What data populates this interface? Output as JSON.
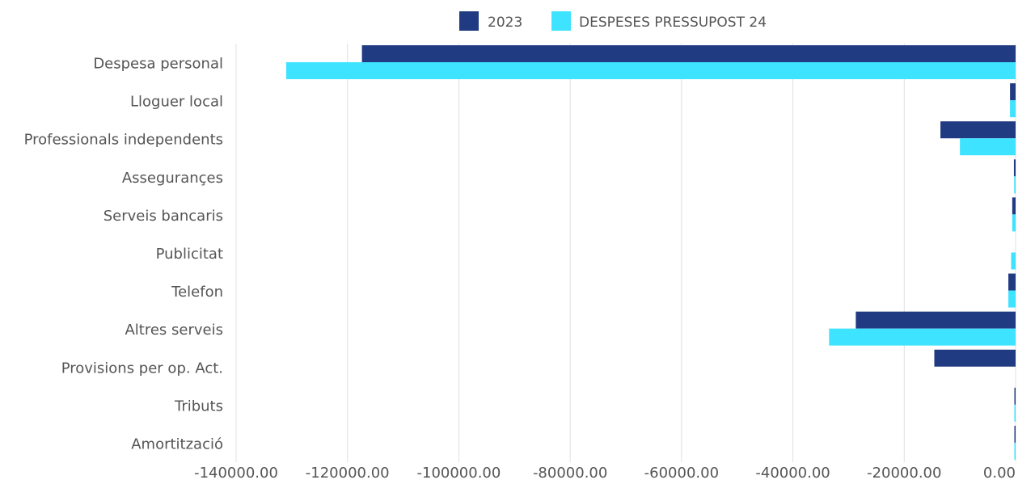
{
  "chart_data": {
    "type": "bar",
    "orientation": "horizontal",
    "categories": [
      "Despesa personal",
      "Lloguer local",
      "Professionals independents",
      "Assegurançes",
      "Serveis bancaris",
      "Publicitat",
      "Telefon",
      "Altres serveis",
      "Provisions per op. Act.",
      "Tributs",
      "Amortització"
    ],
    "series": [
      {
        "name": "2023",
        "color": "#213b82",
        "values": [
          -117400,
          -1000,
          -13500,
          -300,
          -600,
          0,
          -1300,
          -28700,
          -14600,
          -150,
          -150
        ]
      },
      {
        "name": "DESPESES PRESSUPOST 24",
        "color": "#3de3ff",
        "values": [
          -131000,
          -1000,
          -10000,
          -250,
          -600,
          -800,
          -1300,
          -33500,
          0,
          -150,
          -150
        ]
      }
    ],
    "xlim": [
      -140000,
      0
    ],
    "xticks": [
      -140000,
      -120000,
      -100000,
      -80000,
      -60000,
      -40000,
      -20000,
      0
    ],
    "xtick_labels": [
      "-140000.00",
      "-120000.00",
      "-100000.00",
      "-80000.00",
      "-60000.00",
      "-40000.00",
      "-20000.00",
      "0.00"
    ],
    "grid": true,
    "legend_position": "top"
  }
}
